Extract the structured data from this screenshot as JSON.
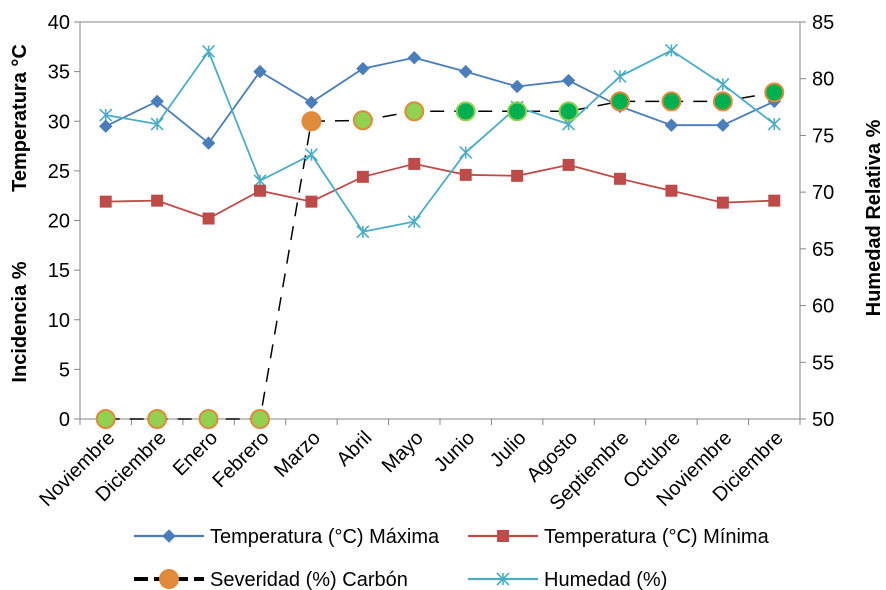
{
  "chart_data": {
    "type": "line",
    "categories": [
      "Noviembre",
      "Diciembre",
      "Enero",
      "Febrero",
      "Marzo",
      "Abril",
      "Mayo",
      "Junio",
      "Julio",
      "Agosto",
      "Septiembre",
      "Octubre",
      "Noviembre",
      "Diciembre"
    ],
    "ylabel_top": "Temperatura °C",
    "ylabel_bottom": "Incidencia %",
    "y2label": "Humedad Relativa %",
    "ylim": [
      0,
      40
    ],
    "y2lim": [
      50,
      85
    ],
    "yticks": [
      0,
      5,
      10,
      15,
      20,
      25,
      30,
      35,
      40
    ],
    "y2ticks": [
      50,
      55,
      60,
      65,
      70,
      75,
      80,
      85
    ],
    "grid": false,
    "legend_position": "bottom",
    "series": [
      {
        "name": "Temperatura (°C) Máxima",
        "axis": "left",
        "color": "#4a7ebb",
        "marker": "diamond",
        "values": [
          29.5,
          32.0,
          27.8,
          35.0,
          31.9,
          35.3,
          36.4,
          35.0,
          33.5,
          34.1,
          31.5,
          29.6,
          29.6,
          32.0
        ]
      },
      {
        "name": "Temperatura (°C) Mínima",
        "axis": "left",
        "color": "#be4b48",
        "marker": "square",
        "values": [
          21.9,
          22.0,
          20.2,
          23.0,
          21.9,
          24.4,
          25.7,
          24.6,
          24.5,
          25.6,
          24.2,
          23.0,
          21.8,
          22.0
        ]
      },
      {
        "name": "Severidad (%) Carbón",
        "axis": "left",
        "color": "#000000",
        "marker": "circle",
        "dashed": true,
        "values": [
          0,
          0,
          0,
          0,
          30.0,
          30.1,
          31.0,
          31.0,
          31.0,
          31.0,
          32.0,
          32.0,
          32.0,
          32.9
        ]
      },
      {
        "name": "Humedad (%)",
        "axis": "right",
        "color": "#4bacc6",
        "marker": "star",
        "values": [
          76.8,
          76.0,
          82.4,
          71.0,
          73.3,
          66.5,
          67.4,
          73.5,
          77.5,
          76.0,
          80.2,
          82.5,
          79.5,
          76.0
        ]
      }
    ],
    "marker_fills": [
      {
        "fill": "#92d050",
        "stroke": "#e08a3c"
      },
      {
        "fill": "#92d050",
        "stroke": "#e08a3c"
      },
      {
        "fill": "#92d050",
        "stroke": "#e08a3c"
      },
      {
        "fill": "#92d050",
        "stroke": "#e08a3c"
      },
      {
        "fill": "#e08a3c",
        "stroke": "#e08a3c"
      },
      {
        "fill": "#92d050",
        "stroke": "#e08a3c"
      },
      {
        "fill": "#92d050",
        "stroke": "#e08a3c"
      },
      {
        "fill": "#00b050",
        "stroke": "#92d050"
      },
      {
        "fill": "#00b050",
        "stroke": "#92d050"
      },
      {
        "fill": "#00b050",
        "stroke": "#92d050"
      },
      {
        "fill": "#00b050",
        "stroke": "#e08a3c"
      },
      {
        "fill": "#00b050",
        "stroke": "#e08a3c"
      },
      {
        "fill": "#00b050",
        "stroke": "#e08a3c"
      },
      {
        "fill": "#00b050",
        "stroke": "#e08a3c"
      }
    ]
  }
}
